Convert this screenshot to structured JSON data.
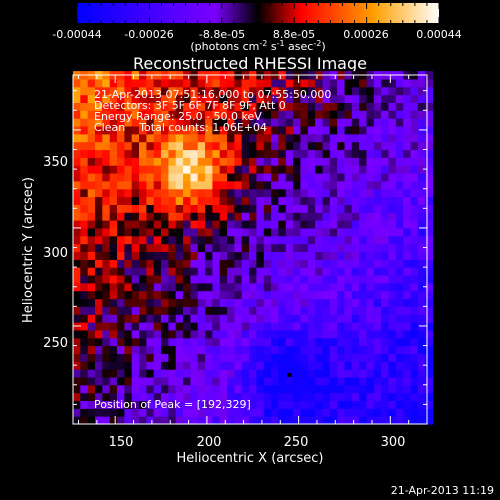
{
  "chart_data": {
    "type": "heatmap",
    "title": "Reconstructed RHESSI Image",
    "xlabel": "Heliocentric X (arcsec)",
    "ylabel": "Heliocentric Y (arcsec)",
    "xlim": [
      127,
      320
    ],
    "ylim": [
      200,
      378
    ],
    "xticks": [
      "150",
      "200",
      "250",
      "300"
    ],
    "yticks": [
      "250",
      "300",
      "350"
    ],
    "colorbar": {
      "range": [
        -0.00044,
        0.00044
      ],
      "ticks": [
        "-0.00044",
        "-0.00026",
        "-8.8e-05",
        "8.8e-05",
        "0.00026",
        "0.00044"
      ],
      "unit_prefix": "(photons cm",
      "unit_exp1": "-2",
      "unit_mid": " s",
      "unit_exp2": "-1",
      "unit_mid2": " asec",
      "unit_exp3": "-2",
      "unit_suffix": ")"
    },
    "annotations": [
      "21-Apr-2013 07:51:16.000 to 07:55:50.000",
      "Detectors: 3F 5F 6F 7F 8F 9F, Att 0",
      "Energy Range: 25.0 - 50.0 keV",
      "Clean    Total counts: 1.06E+04"
    ],
    "peak_label": "Position of Peak = [192,329]",
    "peak": [
      192,
      329
    ],
    "min_marker": [
      245,
      225
    ]
  },
  "footer_timestamp": "21-Apr-2013 11:19"
}
